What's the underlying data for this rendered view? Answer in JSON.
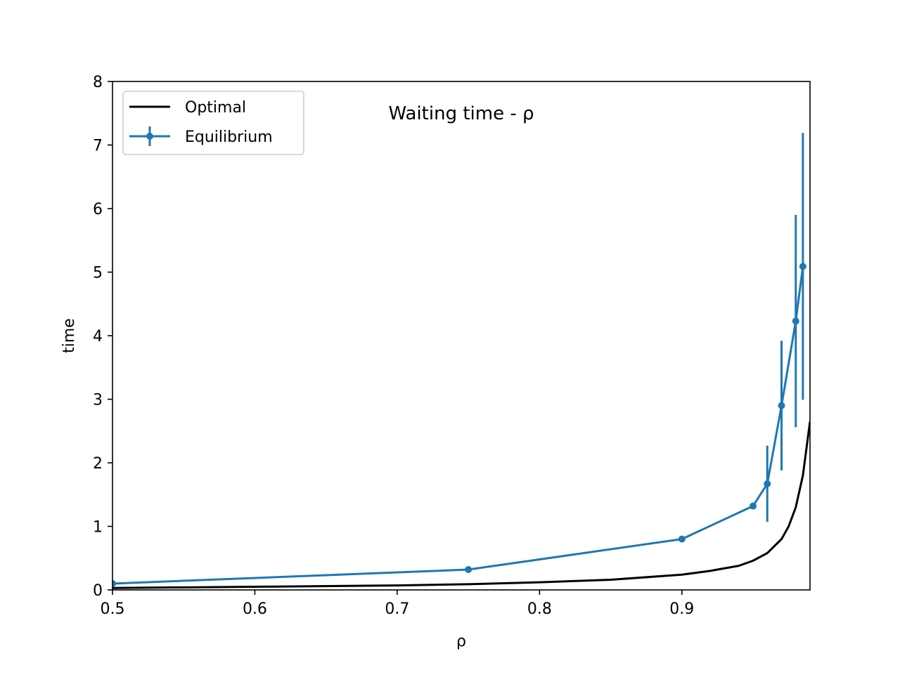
{
  "chart_data": {
    "type": "line",
    "title": "Waiting time - ρ",
    "xlabel": "ρ",
    "ylabel": "time",
    "xlim": [
      0.5,
      0.99
    ],
    "ylim": [
      0,
      8
    ],
    "x_ticks": [
      "0.5",
      "0.6",
      "0.7",
      "0.8",
      "0.9"
    ],
    "x_tick_values": [
      0.5,
      0.6,
      0.7,
      0.8,
      0.9
    ],
    "y_ticks": [
      "0",
      "1",
      "2",
      "3",
      "4",
      "5",
      "6",
      "7",
      "8"
    ],
    "y_tick_values": [
      0,
      1,
      2,
      3,
      4,
      5,
      6,
      7,
      8
    ],
    "grid": false,
    "legend_position": "top-left",
    "series": [
      {
        "name": "Optimal",
        "color": "#000000",
        "style": "line",
        "x": [
          0.5,
          0.6,
          0.7,
          0.75,
          0.8,
          0.85,
          0.9,
          0.92,
          0.94,
          0.95,
          0.96,
          0.97,
          0.975,
          0.98,
          0.985,
          0.99
        ],
        "y": [
          0.03,
          0.05,
          0.07,
          0.09,
          0.12,
          0.16,
          0.24,
          0.3,
          0.38,
          0.46,
          0.58,
          0.8,
          1.0,
          1.3,
          1.8,
          2.65
        ]
      },
      {
        "name": "Equilibrium",
        "color": "#1f77b4",
        "style": "errorbar",
        "x": [
          0.5,
          0.75,
          0.9,
          0.95,
          0.96,
          0.97,
          0.98,
          0.985
        ],
        "y": [
          0.1,
          0.32,
          0.8,
          1.32,
          1.67,
          2.9,
          4.23,
          5.09
        ],
        "yerr": [
          0.0,
          0.0,
          0.0,
          0.0,
          0.6,
          1.02,
          1.67,
          2.1
        ]
      }
    ]
  }
}
